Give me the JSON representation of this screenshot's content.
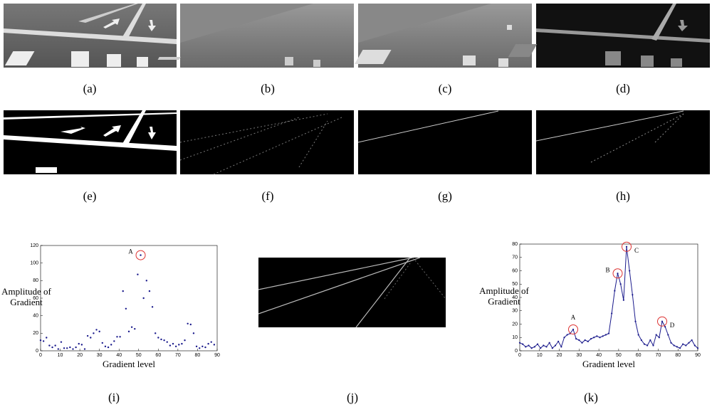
{
  "captions": [
    "(a)",
    "(b)",
    "(c)",
    "(d)",
    "(e)",
    "(f)",
    "(g)",
    "(h)",
    "(i)",
    "(j)",
    "(k)"
  ],
  "chart_data": [
    {
      "type": "scatter",
      "xlabel": "Gradient level",
      "ylabel": [
        "Amplitude of",
        "Gradient"
      ],
      "color": "#1a1a8c",
      "x": [
        0,
        1.5,
        3,
        4.5,
        6,
        7.5,
        9,
        10.5,
        12,
        13.5,
        15,
        16.5,
        18,
        19.5,
        21,
        22.5,
        24,
        25.5,
        27,
        28.5,
        30,
        31.5,
        33,
        34.5,
        36,
        37.5,
        39,
        40.5,
        42,
        43.5,
        45,
        46.5,
        48,
        49.5,
        51,
        52.5,
        54,
        55.5,
        57,
        58.5,
        60,
        61.5,
        63,
        64.5,
        66,
        67.5,
        69,
        70.5,
        72,
        73.5,
        75,
        76.5,
        78,
        79.5,
        81,
        82.5,
        84,
        85.5,
        87,
        88.5
      ],
      "values": [
        12,
        11,
        15,
        6,
        4,
        6,
        2,
        10,
        3,
        3,
        4,
        2,
        4,
        8,
        7,
        2,
        17,
        15,
        20,
        24,
        22,
        9,
        5,
        4,
        7,
        11,
        16,
        16,
        68,
        48,
        22,
        27,
        25,
        87,
        109,
        60,
        80,
        68,
        50,
        20,
        15,
        13,
        12,
        10,
        6,
        8,
        5,
        7,
        8,
        12,
        31,
        30,
        20,
        5,
        3,
        5,
        4,
        8,
        10,
        7
      ],
      "xlim": [
        0,
        90
      ],
      "ylim": [
        0,
        120
      ],
      "xticks": [
        0,
        10,
        20,
        30,
        40,
        50,
        60,
        70,
        80,
        90
      ],
      "yticks": [
        0,
        20,
        40,
        60,
        80,
        100,
        120
      ],
      "annotations": [
        {
          "text": "A",
          "x": 51,
          "y": 109,
          "side": "left"
        }
      ]
    },
    {
      "type": "line",
      "xlabel": "Gradient level",
      "ylabel": [
        "Amplitude of",
        "Gradient"
      ],
      "color": "#1a1a8c",
      "x": [
        0,
        1.5,
        3,
        4.5,
        6,
        7.5,
        9,
        10.5,
        12,
        13.5,
        15,
        16.5,
        18,
        19.5,
        21,
        22.5,
        24,
        25.5,
        27,
        28.5,
        30,
        31.5,
        33,
        34.5,
        36,
        37.5,
        39,
        40.5,
        42,
        43.5,
        45,
        46.5,
        48,
        49.5,
        51,
        52.5,
        54,
        55.5,
        57,
        58.5,
        60,
        61.5,
        63,
        64.5,
        66,
        67.5,
        69,
        70.5,
        72,
        73.5,
        75,
        76.5,
        78,
        79.5,
        81,
        82.5,
        84,
        85.5,
        87,
        88.5,
        90
      ],
      "values": [
        6,
        5,
        3,
        4,
        2,
        3,
        5,
        2,
        4,
        3,
        6,
        2,
        4,
        7,
        3,
        10,
        12,
        13,
        16,
        9,
        8,
        6,
        8,
        7,
        9,
        10,
        11,
        10,
        11,
        12,
        13,
        28,
        45,
        58,
        50,
        38,
        78,
        60,
        42,
        22,
        12,
        8,
        5,
        4,
        8,
        4,
        12,
        10,
        22,
        18,
        12,
        6,
        4,
        3,
        2,
        5,
        4,
        6,
        8,
        4,
        2
      ],
      "xlim": [
        0,
        90
      ],
      "ylim": [
        0,
        80
      ],
      "xticks": [
        0,
        10,
        20,
        30,
        40,
        50,
        60,
        70,
        80,
        90
      ],
      "yticks": [
        0,
        10,
        20,
        30,
        40,
        50,
        60,
        70,
        80
      ],
      "annotations": [
        {
          "text": "A",
          "x": 27,
          "y": 16,
          "side": "above"
        },
        {
          "text": "B",
          "x": 49.5,
          "y": 58,
          "side": "left"
        },
        {
          "text": "C",
          "x": 54,
          "y": 78,
          "side": "right"
        },
        {
          "text": "D",
          "x": 72,
          "y": 22,
          "side": "right"
        }
      ]
    }
  ]
}
